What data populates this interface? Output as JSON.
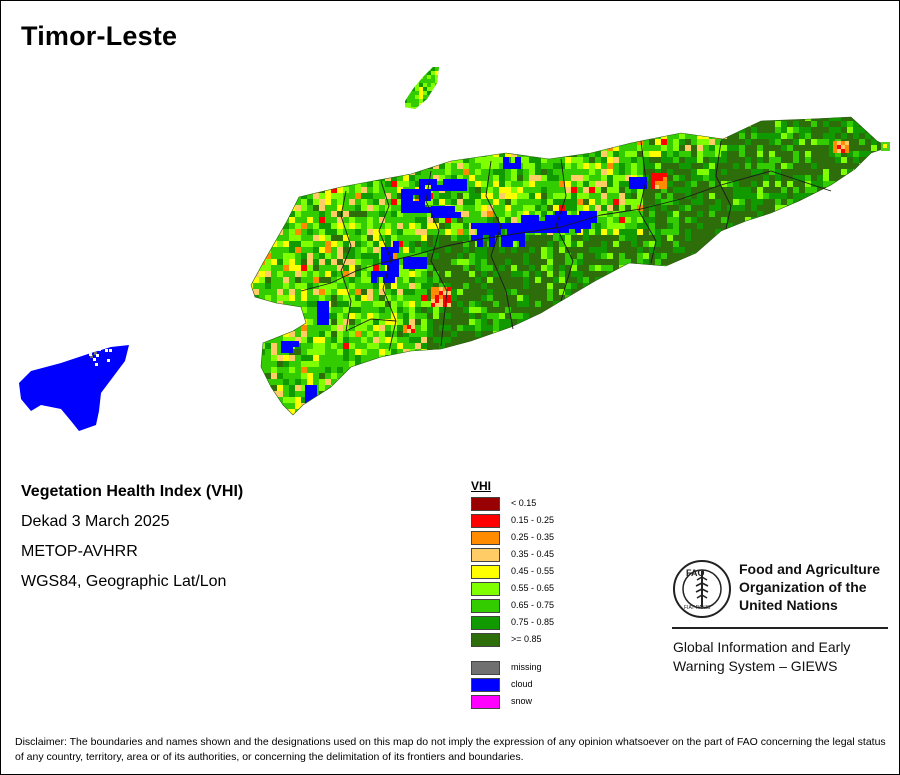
{
  "map": {
    "title": "Timor-Leste"
  },
  "info": {
    "index_title": "Vegetation Health Index (VHI)",
    "period": "Dekad 3 March 2025",
    "sensor": "METOP-AVHRR",
    "projection": "WGS84, Geographic Lat/Lon"
  },
  "legend": {
    "title": "VHI",
    "classes": [
      {
        "label": "< 0.15",
        "color": "#990000"
      },
      {
        "label": "0.15 - 0.25",
        "color": "#ff0000"
      },
      {
        "label": "0.25 - 0.35",
        "color": "#ff8c00"
      },
      {
        "label": "0.35 - 0.45",
        "color": "#ffcc66"
      },
      {
        "label": "0.45 - 0.55",
        "color": "#ffff00"
      },
      {
        "label": "0.55 - 0.65",
        "color": "#80ff00"
      },
      {
        "label": "0.65 - 0.75",
        "color": "#33cc00"
      },
      {
        "label": "0.75 - 0.85",
        "color": "#119900"
      },
      {
        "label": ">= 0.85",
        "color": "#2d6e0a"
      }
    ],
    "special": [
      {
        "label": "missing",
        "color": "#707070"
      },
      {
        "label": "cloud",
        "color": "#0000ff"
      },
      {
        "label": "snow",
        "color": "#ff00ff"
      }
    ]
  },
  "organization": {
    "name_line1": "Food and Agriculture",
    "name_line2": "Organization of the",
    "name_line3": "United Nations",
    "logo_text_top": "FAO",
    "logo_text_bottom": "FIAT PANIS",
    "system_line1": "Global Information and Early",
    "system_line2": "Warning System – GIEWS"
  },
  "disclaimer": "Disclaimer: The boundaries and names shown and the designations used on this map do not imply the expression of any opinion whatsoever on the part of FAO concerning the legal status of any country, territory, area or of its authorities, or concerning the delimitation of its frontiers and boundaries."
}
